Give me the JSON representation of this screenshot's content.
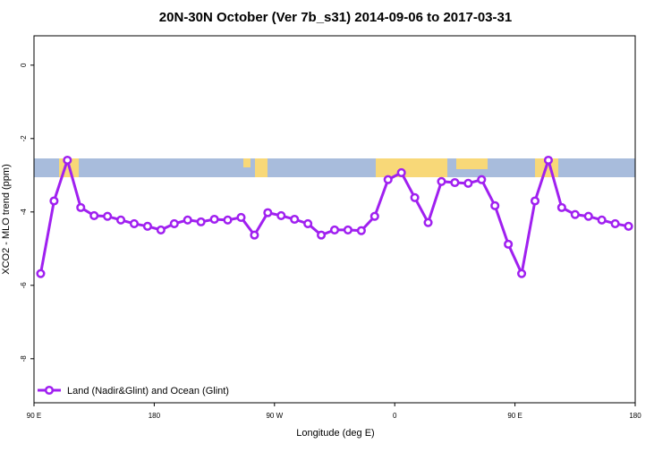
{
  "chart_data": {
    "type": "line",
    "title": "20N-30N October (Ver 7b_s31)   2014-09-06 to 2017-03-31",
    "x_label": "Longitude (deg E)",
    "y_label": "XCO2 - MLO trend (ppm)",
    "x": [
      95,
      105,
      115,
      125,
      135,
      145,
      155,
      165,
      175,
      185,
      195,
      205,
      215,
      225,
      235,
      245,
      255,
      265,
      275,
      285,
      295,
      305,
      315,
      325,
      335,
      345,
      355,
      365,
      375,
      385,
      395,
      405,
      415,
      425,
      435,
      445,
      455,
      465,
      475,
      485,
      495,
      505,
      515,
      525,
      535
    ],
    "series": [
      {
        "name": "Land (Nadir&Glint) and Ocean (Glint)",
        "color": "#a020f0",
        "values": [
          -5.68,
          -3.7,
          -2.59,
          -3.88,
          -4.1,
          -4.12,
          -4.22,
          -4.32,
          -4.39,
          -4.49,
          -4.32,
          -4.22,
          -4.27,
          -4.2,
          -4.22,
          -4.15,
          -4.63,
          -4.02,
          -4.1,
          -4.2,
          -4.32,
          -4.63,
          -4.49,
          -4.49,
          -4.51,
          -4.12,
          -3.12,
          -2.93,
          -3.61,
          -4.29,
          -3.17,
          -3.2,
          -3.22,
          -3.12,
          -3.83,
          -4.88,
          -5.68,
          -3.7,
          -2.59,
          -3.88,
          -4.07,
          -4.12,
          -4.22,
          -4.32,
          -4.39
        ]
      }
    ],
    "xlim": [
      90,
      540
    ],
    "xticks": [
      {
        "value": 90,
        "label": "90 E"
      },
      180,
      {
        "value": 270,
        "label": "90 W"
      },
      {
        "value": 360,
        "label": "0"
      },
      {
        "value": 450,
        "label": "90 E"
      },
      {
        "value": 540,
        "label": "180"
      }
    ],
    "ylim": [
      -9.2,
      0.8
    ],
    "yticks": [
      0,
      -2,
      -4,
      -6,
      -8
    ],
    "legend": "bottom-left"
  }
}
